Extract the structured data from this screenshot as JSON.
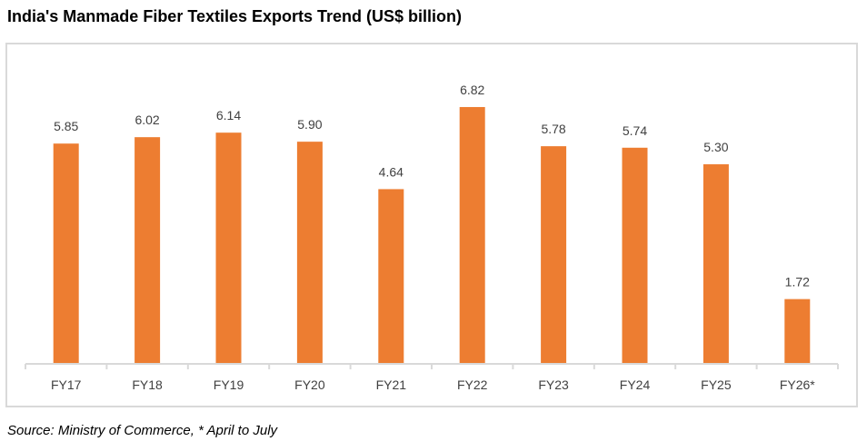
{
  "chart_data": {
    "type": "bar",
    "title": "India's Manmade Fiber Textiles Exports Trend (US$ billion)",
    "categories": [
      "FY17",
      "FY18",
      "FY19",
      "FY20",
      "FY21",
      "FY22",
      "FY23",
      "FY24",
      "FY25",
      "FY26*"
    ],
    "values": [
      5.85,
      6.02,
      6.14,
      5.9,
      4.64,
      6.82,
      5.78,
      5.74,
      5.3,
      1.72
    ],
    "data_labels": [
      "5.85",
      "6.02",
      "6.14",
      "5.90",
      "4.64",
      "6.82",
      "5.78",
      "5.74",
      "5.30",
      "1.72"
    ],
    "xlabel": "",
    "ylabel": "",
    "ylim": [
      0,
      7
    ],
    "grid": false,
    "legend": "none",
    "bar_color": "#ED7D31"
  },
  "source": "Source: Ministry of Commerce, * April to July"
}
